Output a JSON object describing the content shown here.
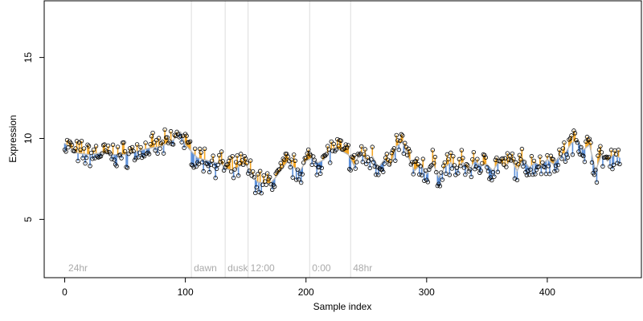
{
  "chart_data": {
    "type": "scatter",
    "xlabel": "Sample index",
    "ylabel": "Expression",
    "xlim": [
      -17,
      478
    ],
    "ylim": [
      1.4,
      18.5
    ],
    "x_ticks": [
      0,
      100,
      200,
      300,
      400
    ],
    "y_ticks": [
      5,
      10,
      15
    ],
    "grid": false,
    "colors": {
      "high": "#f5a623",
      "low": "#5b8fd9",
      "trend": "#b8b8b8",
      "vline": "#dddddd",
      "annotation": "#aaaaaa"
    },
    "vertical_lines": [
      105,
      133,
      152,
      203,
      237
    ],
    "annotations": [
      {
        "x": 3,
        "label": "24hr"
      },
      {
        "x": 107,
        "label": "dawn"
      },
      {
        "x": 135,
        "label": "dusk"
      },
      {
        "x": 154,
        "label": "12:00"
      },
      {
        "x": 205,
        "label": "0:00"
      },
      {
        "x": 239,
        "label": "48hr"
      }
    ],
    "anchors": [
      [
        0,
        9.7
      ],
      [
        10,
        9.1
      ],
      [
        20,
        9.0
      ],
      [
        30,
        9.1
      ],
      [
        40,
        9.0
      ],
      [
        50,
        9.0
      ],
      [
        60,
        9.2
      ],
      [
        70,
        9.4
      ],
      [
        80,
        9.5
      ],
      [
        90,
        9.9
      ],
      [
        96,
        10.4
      ],
      [
        100,
        9.6
      ],
      [
        105,
        9.2
      ],
      [
        110,
        8.8
      ],
      [
        120,
        8.6
      ],
      [
        130,
        8.4
      ],
      [
        135,
        8.1
      ],
      [
        140,
        8.0
      ],
      [
        145,
        8.3
      ],
      [
        150,
        8.4
      ],
      [
        155,
        7.8
      ],
      [
        160,
        7.3
      ],
      [
        170,
        7.2
      ],
      [
        175,
        7.6
      ],
      [
        180,
        8.1
      ],
      [
        185,
        8.6
      ],
      [
        190,
        8.2
      ],
      [
        195,
        8.0
      ],
      [
        200,
        8.6
      ],
      [
        205,
        8.8
      ],
      [
        210,
        8.5
      ],
      [
        215,
        8.7
      ],
      [
        220,
        9.3
      ],
      [
        225,
        9.4
      ],
      [
        230,
        9.2
      ],
      [
        235,
        9.0
      ],
      [
        240,
        8.3
      ],
      [
        245,
        9.2
      ],
      [
        250,
        8.6
      ],
      [
        255,
        8.9
      ],
      [
        260,
        8.2
      ],
      [
        265,
        8.7
      ],
      [
        270,
        8.3
      ],
      [
        275,
        9.5
      ],
      [
        280,
        9.8
      ],
      [
        285,
        8.8
      ],
      [
        290,
        8.0
      ],
      [
        295,
        8.4
      ],
      [
        300,
        7.8
      ],
      [
        305,
        8.5
      ],
      [
        310,
        7.6
      ],
      [
        315,
        8.2
      ],
      [
        320,
        8.5
      ],
      [
        325,
        8.1
      ],
      [
        330,
        8.5
      ],
      [
        335,
        8.0
      ],
      [
        340,
        8.6
      ],
      [
        345,
        8.3
      ],
      [
        350,
        8.4
      ],
      [
        355,
        8.0
      ],
      [
        360,
        8.6
      ],
      [
        365,
        8.2
      ],
      [
        370,
        8.7
      ],
      [
        375,
        8.0
      ],
      [
        380,
        8.7
      ],
      [
        385,
        8.2
      ],
      [
        390,
        8.5
      ],
      [
        395,
        8.3
      ],
      [
        400,
        8.7
      ],
      [
        405,
        8.4
      ],
      [
        410,
        8.9
      ],
      [
        415,
        9.1
      ],
      [
        420,
        9.7
      ],
      [
        425,
        9.9
      ],
      [
        430,
        9.3
      ],
      [
        435,
        9.6
      ],
      [
        440,
        8.0
      ],
      [
        445,
        9.0
      ],
      [
        450,
        8.6
      ],
      [
        455,
        9.0
      ],
      [
        460,
        8.8
      ]
    ],
    "n_points": 461
  }
}
